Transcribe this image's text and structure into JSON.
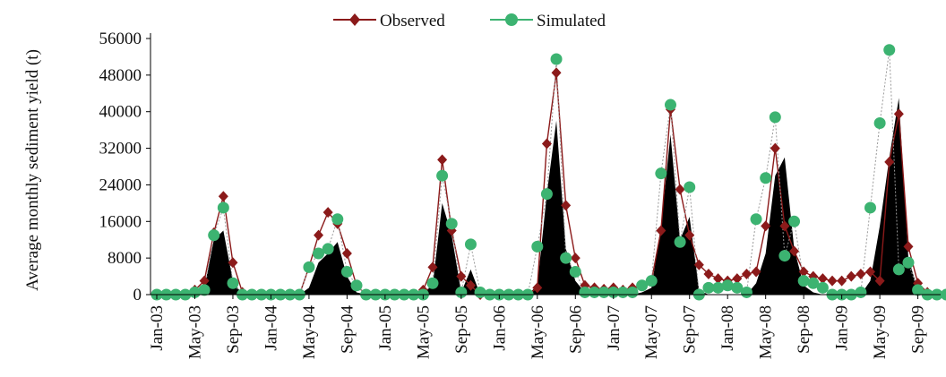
{
  "chart_data": {
    "type": "line",
    "title": "",
    "xlabel": "",
    "ylabel": "Average monthly sediment yield  (t)",
    "ylim": [
      0,
      56000
    ],
    "yticks": [
      0,
      8000,
      16000,
      24000,
      32000,
      40000,
      48000,
      56000
    ],
    "xticks": [
      "Jan-03",
      "May-03",
      "Sep-03",
      "Jan-04",
      "May-04",
      "Sep-04",
      "Jan-05",
      "May-05",
      "Sep-05",
      "Jan-06",
      "May-06",
      "Sep-06",
      "Jan-07",
      "May-07",
      "Sep-07",
      "Jan-08",
      "May-08",
      "Sep-08",
      "Jan-09",
      "May-09",
      "Sep-09"
    ],
    "x_start": "Jan-03",
    "legend_position": "top-center",
    "grid": false,
    "series": [
      {
        "name": "Observed",
        "color": "#8b1a1a",
        "marker": "diamond",
        "values": [
          0,
          0,
          0,
          0,
          1000,
          3000,
          13500,
          21500,
          7000,
          500,
          0,
          0,
          0,
          0,
          0,
          0,
          6000,
          13000,
          18000,
          15500,
          9000,
          2000,
          0,
          0,
          0,
          0,
          0,
          0,
          1000,
          6000,
          29500,
          14000,
          4000,
          2000,
          0,
          0,
          0,
          0,
          0,
          0,
          1500,
          33000,
          48500,
          19500,
          8000,
          2000,
          1500,
          1200,
          1500,
          1000,
          1500,
          2000,
          3000,
          14000,
          40500,
          23000,
          13000,
          6500,
          4500,
          3500,
          3000,
          3500,
          4500,
          5000,
          15000,
          32000,
          15000,
          9500,
          5000,
          4000,
          3500,
          3000,
          3000,
          4000,
          4500,
          5000,
          3000,
          29000,
          39500,
          10500,
          2500,
          500,
          0,
          0
        ]
      },
      {
        "name": "Simulated",
        "color": "#3cb371",
        "marker": "circle",
        "values": [
          0,
          0,
          0,
          0,
          500,
          1000,
          13000,
          19000,
          2500,
          0,
          0,
          0,
          0,
          0,
          0,
          0,
          6000,
          9000,
          10000,
          16500,
          5000,
          2000,
          0,
          0,
          0,
          0,
          0,
          0,
          0,
          2500,
          26000,
          15500,
          500,
          11000,
          500,
          0,
          0,
          0,
          0,
          0,
          10500,
          22000,
          51500,
          8000,
          5000,
          500,
          500,
          500,
          500,
          500,
          500,
          2000,
          3000,
          26500,
          41500,
          11500,
          23500,
          0,
          1500,
          1500,
          2000,
          1500,
          500,
          16500,
          25500,
          38800,
          8500,
          16000,
          3000,
          2500,
          1500,
          0,
          0,
          0,
          500,
          19000,
          37500,
          53500,
          5500,
          7000,
          1000,
          0,
          0,
          0
        ]
      },
      {
        "name": "",
        "color": "#000000",
        "marker": "none",
        "fill": true,
        "values": [
          0,
          0,
          0,
          0,
          500,
          1500,
          12000,
          14000,
          3000,
          0,
          0,
          0,
          0,
          0,
          0,
          0,
          1500,
          7000,
          9000,
          11500,
          4000,
          500,
          0,
          0,
          0,
          0,
          0,
          0,
          500,
          2000,
          20000,
          13000,
          500,
          5500,
          0,
          0,
          0,
          0,
          0,
          0,
          2000,
          22000,
          38000,
          10000,
          3000,
          500,
          0,
          0,
          0,
          0,
          0,
          500,
          1500,
          15000,
          35000,
          12000,
          17000,
          1000,
          0,
          0,
          0,
          0,
          0,
          2500,
          9000,
          26000,
          30000,
          10000,
          2000,
          500,
          0,
          0,
          0,
          0,
          0,
          3000,
          15000,
          30000,
          43000,
          8000,
          1000,
          0,
          0,
          0
        ]
      }
    ]
  }
}
